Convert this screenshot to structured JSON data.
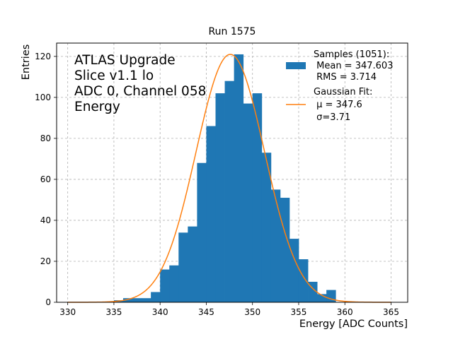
{
  "chart_data": {
    "type": "bar",
    "title": "Run 1575",
    "xlabel": "Energy [ADC Counts]",
    "ylabel": "Entries",
    "xlim": [
      328.8,
      366.8
    ],
    "ylim": [
      0,
      126.5
    ],
    "xticks": [
      330,
      335,
      340,
      345,
      350,
      355,
      360,
      365
    ],
    "yticks": [
      0,
      20,
      40,
      60,
      80,
      100,
      120
    ],
    "grid": true,
    "annotation": [
      "ATLAS Upgrade",
      "Slice v1.1 lo",
      "ADC 0, Channel 058",
      "Energy"
    ],
    "histogram": {
      "bin_width": 1,
      "bin_edges_start": 335,
      "values": [
        1,
        2,
        2,
        2,
        5,
        16,
        18,
        34,
        37,
        68,
        86,
        102,
        108,
        121,
        97,
        102,
        73,
        55,
        51,
        31,
        21,
        10,
        4,
        6
      ],
      "color": "#1f77b4"
    },
    "fit": {
      "name": "Gaussian Fit",
      "mu": 347.6,
      "sigma": 3.71,
      "amplitude": 121,
      "x_range": [
        330,
        365
      ],
      "color": "#ff7f0e"
    },
    "legend": {
      "position": "top-right",
      "entries": [
        {
          "kind": "bar",
          "lines": [
            "Samples (1051):",
            " Mean = 347.603",
            " RMS = 3.714"
          ]
        },
        {
          "kind": "line",
          "lines": [
            "Gaussian Fit:",
            " μ = 347.6",
            " σ=3.71"
          ]
        }
      ]
    }
  }
}
